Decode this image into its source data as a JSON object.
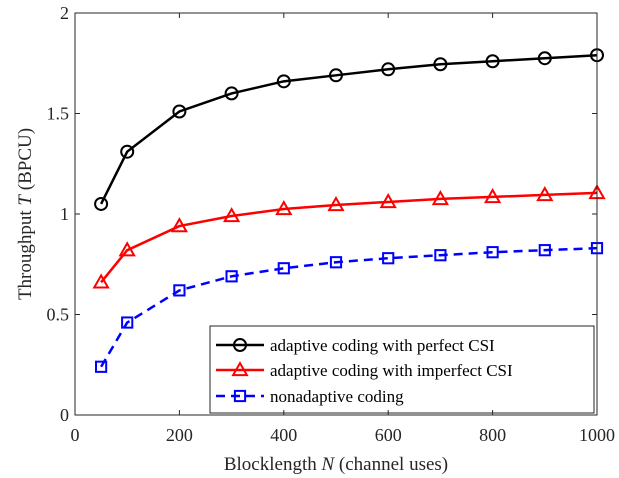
{
  "chart_data": {
    "type": "line",
    "xlabel_prefix": "Blocklength ",
    "xlabel_var": "N",
    "xlabel_suffix": " (channel uses)",
    "ylabel_prefix": "Throughput ",
    "ylabel_var": "T",
    "ylabel_suffix": " (BPCU)",
    "xlim": [
      0,
      1000
    ],
    "ylim": [
      0,
      2
    ],
    "xticks": [
      0,
      200,
      400,
      600,
      800,
      1000
    ],
    "yticks": [
      0,
      0.5,
      1,
      1.5,
      2
    ],
    "xtick_labels": [
      "0",
      "200",
      "400",
      "600",
      "800",
      "1000"
    ],
    "ytick_labels": [
      "0",
      "0.5",
      "1",
      "1.5",
      "2"
    ],
    "grid": false,
    "legend_position": "bottom-right",
    "x": [
      50,
      100,
      200,
      300,
      400,
      500,
      600,
      700,
      800,
      900,
      1000
    ],
    "series": [
      {
        "name": "adaptive coding with perfect CSI",
        "values": [
          1.05,
          1.31,
          1.51,
          1.6,
          1.66,
          1.69,
          1.72,
          1.745,
          1.76,
          1.775,
          1.79
        ],
        "color": "#000000",
        "marker": "circle",
        "linestyle": "solid"
      },
      {
        "name": "adaptive coding with imperfect CSI",
        "values": [
          0.66,
          0.82,
          0.94,
          0.99,
          1.025,
          1.045,
          1.06,
          1.075,
          1.085,
          1.095,
          1.105
        ],
        "color": "#ff0000",
        "marker": "triangle",
        "linestyle": "solid"
      },
      {
        "name": "nonadaptive coding",
        "values": [
          0.24,
          0.46,
          0.62,
          0.69,
          0.73,
          0.76,
          0.78,
          0.795,
          0.81,
          0.82,
          0.83
        ],
        "color": "#0000ff",
        "marker": "square",
        "linestyle": "dashed"
      }
    ]
  }
}
